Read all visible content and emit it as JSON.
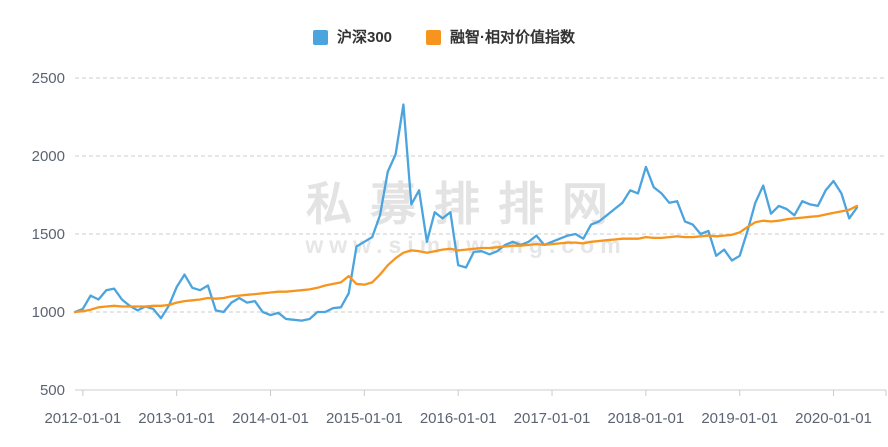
{
  "legend": {
    "items": [
      {
        "label": "沪深300",
        "color": "#4ba4de"
      },
      {
        "label": "融智·相对价值指数",
        "color": "#f7941e"
      }
    ]
  },
  "watermark": {
    "line1": "私募排排网",
    "line2": "www.simuwang.com"
  },
  "colors": {
    "csi300": "#4ba4de",
    "rongzhi": "#f7941e",
    "gridline": "#cccccc",
    "axis_text": "#5b6472",
    "watermark": "#e3e3e3"
  },
  "chart_data": {
    "type": "line",
    "title": "",
    "xlabel": "",
    "ylabel": "",
    "grid": "horizontal-dashed",
    "legend_position": "top-center",
    "ylim": [
      500,
      2500
    ],
    "y_ticks": [
      500,
      1000,
      1500,
      2000,
      2500
    ],
    "x_tick_labels": [
      "2012-01-01",
      "2013-01-01",
      "2014-01-01",
      "2015-01-01",
      "2016-01-01",
      "2017-01-01",
      "2018-01-01",
      "2019-01-01",
      "2020-01-01"
    ],
    "x": [
      "2011-12",
      "2012-01",
      "2012-02",
      "2012-03",
      "2012-04",
      "2012-05",
      "2012-06",
      "2012-07",
      "2012-08",
      "2012-09",
      "2012-10",
      "2012-11",
      "2012-12",
      "2013-01",
      "2013-02",
      "2013-03",
      "2013-04",
      "2013-05",
      "2013-06",
      "2013-07",
      "2013-08",
      "2013-09",
      "2013-10",
      "2013-11",
      "2013-12",
      "2014-01",
      "2014-02",
      "2014-03",
      "2014-04",
      "2014-05",
      "2014-06",
      "2014-07",
      "2014-08",
      "2014-09",
      "2014-10",
      "2014-11",
      "2014-12",
      "2015-01",
      "2015-02",
      "2015-03",
      "2015-04",
      "2015-05",
      "2015-06",
      "2015-07",
      "2015-08",
      "2015-09",
      "2015-10",
      "2015-11",
      "2015-12",
      "2016-01",
      "2016-02",
      "2016-03",
      "2016-04",
      "2016-05",
      "2016-06",
      "2016-07",
      "2016-08",
      "2016-09",
      "2016-10",
      "2016-11",
      "2016-12",
      "2017-01",
      "2017-02",
      "2017-03",
      "2017-04",
      "2017-05",
      "2017-06",
      "2017-07",
      "2017-08",
      "2017-09",
      "2017-10",
      "2017-11",
      "2017-12",
      "2018-01",
      "2018-02",
      "2018-03",
      "2018-04",
      "2018-05",
      "2018-06",
      "2018-07",
      "2018-08",
      "2018-09",
      "2018-10",
      "2018-11",
      "2018-12",
      "2019-01",
      "2019-02",
      "2019-03",
      "2019-04",
      "2019-05",
      "2019-06",
      "2019-07",
      "2019-08",
      "2019-09",
      "2019-10",
      "2019-11",
      "2019-12",
      "2020-01",
      "2020-02",
      "2020-03",
      "2020-04"
    ],
    "series": [
      {
        "name": "沪深300",
        "color": "#4ba4de",
        "values": [
          1000,
          1020,
          1105,
          1080,
          1140,
          1150,
          1080,
          1040,
          1010,
          1035,
          1020,
          960,
          1040,
          1160,
          1240,
          1155,
          1140,
          1170,
          1010,
          1000,
          1060,
          1090,
          1060,
          1070,
          1000,
          980,
          995,
          955,
          950,
          945,
          955,
          1000,
          1000,
          1025,
          1030,
          1120,
          1420,
          1450,
          1480,
          1620,
          1900,
          2010,
          2330,
          1690,
          1780,
          1450,
          1640,
          1600,
          1640,
          1300,
          1285,
          1385,
          1390,
          1370,
          1390,
          1430,
          1450,
          1430,
          1450,
          1490,
          1430,
          1450,
          1470,
          1490,
          1500,
          1470,
          1560,
          1580,
          1620,
          1660,
          1700,
          1780,
          1760,
          1930,
          1800,
          1760,
          1700,
          1710,
          1580,
          1560,
          1500,
          1520,
          1360,
          1400,
          1330,
          1360,
          1520,
          1700,
          1810,
          1630,
          1680,
          1660,
          1620,
          1710,
          1690,
          1680,
          1780,
          1840,
          1760,
          1600,
          1670
        ]
      },
      {
        "name": "融智·相对价值指数",
        "color": "#f7941e",
        "values": [
          1000,
          1005,
          1015,
          1030,
          1035,
          1040,
          1035,
          1035,
          1035,
          1035,
          1040,
          1040,
          1045,
          1060,
          1070,
          1075,
          1080,
          1090,
          1085,
          1090,
          1100,
          1105,
          1110,
          1115,
          1120,
          1125,
          1130,
          1130,
          1135,
          1140,
          1145,
          1155,
          1170,
          1180,
          1190,
          1230,
          1180,
          1175,
          1190,
          1240,
          1300,
          1345,
          1380,
          1395,
          1390,
          1380,
          1390,
          1400,
          1405,
          1395,
          1400,
          1405,
          1410,
          1410,
          1415,
          1420,
          1425,
          1425,
          1430,
          1435,
          1430,
          1435,
          1440,
          1445,
          1445,
          1440,
          1450,
          1455,
          1460,
          1465,
          1470,
          1470,
          1470,
          1480,
          1475,
          1475,
          1480,
          1485,
          1480,
          1480,
          1485,
          1490,
          1485,
          1490,
          1495,
          1510,
          1545,
          1575,
          1585,
          1580,
          1585,
          1595,
          1600,
          1605,
          1610,
          1615,
          1625,
          1635,
          1645,
          1655,
          1680
        ]
      }
    ]
  }
}
